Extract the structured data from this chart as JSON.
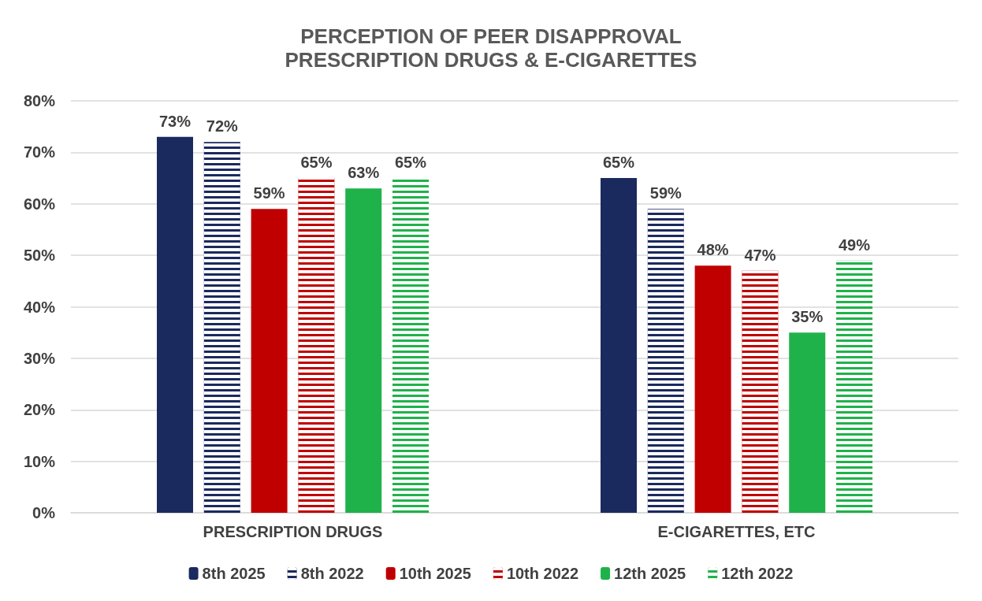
{
  "chart_data": {
    "type": "bar",
    "title": "PERCEPTION OF PEER DISAPPROVAL",
    "subtitle": "PRESCRIPTION DRUGS & E-CIGARETTES",
    "categories": [
      "PRESCRIPTION DRUGS",
      "E-CIGARETTES, ETC"
    ],
    "series": [
      {
        "name": "8th 2025",
        "color": "#1b2a5e",
        "values": [
          73,
          65
        ],
        "value_labels": [
          "73%",
          "65%"
        ]
      },
      {
        "name": "8th 2022",
        "color": "#1b2a5e",
        "values": [
          72,
          59
        ],
        "value_labels": [
          "72%",
          "59%"
        ]
      },
      {
        "name": "10th 2025",
        "color": "#c00000",
        "values": [
          59,
          48
        ],
        "value_labels": [
          "59%",
          "48%"
        ]
      },
      {
        "name": "10th 2022",
        "color": "#c00000",
        "values": [
          65,
          47
        ],
        "value_labels": [
          "65%",
          "47%"
        ]
      },
      {
        "name": "12th 2025",
        "color": "#1fb24a",
        "values": [
          63,
          35
        ],
        "value_labels": [
          "63%",
          "35%"
        ]
      },
      {
        "name": "12th 2022",
        "color": "#1fb24a",
        "values": [
          65,
          49
        ],
        "value_labels": [
          "65%",
          "49%"
        ]
      }
    ],
    "ylim": [
      0,
      80
    ],
    "yticks": [
      {
        "value": 0,
        "label": "0%"
      },
      {
        "value": 10,
        "label": "10%"
      },
      {
        "value": 20,
        "label": "20%"
      },
      {
        "value": 30,
        "label": "30%"
      },
      {
        "value": 40,
        "label": "40%"
      },
      {
        "value": 50,
        "label": "50%"
      },
      {
        "value": 60,
        "label": "60%"
      },
      {
        "value": 70,
        "label": "70%"
      },
      {
        "value": 80,
        "label": "80%"
      }
    ],
    "grid": "y",
    "legend": "bottom"
  }
}
